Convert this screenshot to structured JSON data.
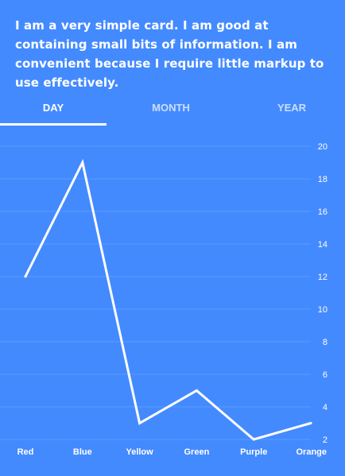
{
  "card": {
    "text": "I am a very simple card. I am good at containing small bits of information. I am convenient because I require little markup to use effectively."
  },
  "tabs": [
    {
      "label": "DAY",
      "active": true
    },
    {
      "label": "MONTH",
      "active": false
    },
    {
      "label": "YEAR",
      "active": false
    }
  ],
  "colors": {
    "background": "#448aff",
    "line": "#ffffff",
    "grid": "#5c9aff"
  },
  "chart_data": {
    "type": "line",
    "categories": [
      "Red",
      "Blue",
      "Yellow",
      "Green",
      "Purple",
      "Orange"
    ],
    "series": [
      {
        "values": [
          12,
          19,
          3,
          5,
          2,
          3
        ]
      }
    ],
    "yticks": [
      2,
      4,
      6,
      8,
      10,
      12,
      14,
      16,
      18,
      20
    ],
    "ylim": [
      2,
      20
    ],
    "ytick_side": "right",
    "grid": true,
    "legend": "none"
  }
}
